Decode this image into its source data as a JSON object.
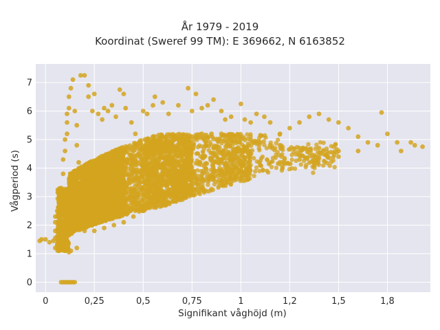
{
  "chart_data": {
    "type": "scatter",
    "title": "År 1979 - 2019",
    "subtitle": "Koordinat (Sweref 99 TM): E 369662, N 6163852",
    "xlabel": "Signifikant våghöjd (m)",
    "ylabel": "Vågperiod (s)",
    "xlim": [
      -0.05,
      1.97
    ],
    "ylim": [
      -0.35,
      7.65
    ],
    "x_ticks": [
      0,
      0.25,
      0.5,
      0.75,
      1,
      1.25,
      1.5,
      1.75
    ],
    "x_tick_labels": [
      "0",
      "0,25",
      "0,5",
      "0,75",
      "1",
      "1,2",
      "1,5",
      "1,8"
    ],
    "y_ticks": [
      0,
      1,
      2,
      3,
      4,
      5,
      6,
      7
    ],
    "y_tick_labels": [
      "0",
      "1",
      "2",
      "3",
      "4",
      "5",
      "6",
      "7"
    ],
    "grid": true,
    "point_color": "#d4a41f",
    "plot_background": "#e5e5ef",
    "series": [
      {
        "values_xy": [
          [
            0.08,
            0
          ],
          [
            0.09,
            0
          ],
          [
            0.1,
            0
          ],
          [
            0.11,
            0
          ],
          [
            0.12,
            0
          ],
          [
            0.13,
            0
          ],
          [
            0.14,
            0
          ],
          [
            0.15,
            0
          ],
          [
            -0.03,
            1.45
          ],
          [
            -0.02,
            1.5
          ],
          [
            0.0,
            1.5
          ],
          [
            0.02,
            1.4
          ],
          [
            0.04,
            1.45
          ],
          [
            0.05,
            1.55
          ],
          [
            0.06,
            1.6
          ],
          [
            0.05,
            1.2
          ],
          [
            0.06,
            1.3
          ],
          [
            0.07,
            1.1
          ],
          [
            0.08,
            1.2
          ],
          [
            0.09,
            1.15
          ],
          [
            0.1,
            1.1
          ],
          [
            0.12,
            1.05
          ],
          [
            0.13,
            1.1
          ],
          [
            0.16,
            1.2
          ],
          [
            0.05,
            1.8
          ],
          [
            0.05,
            2.1
          ],
          [
            0.05,
            2.3
          ],
          [
            0.06,
            2.5
          ],
          [
            0.07,
            2.9
          ],
          [
            0.08,
            3.3
          ],
          [
            0.09,
            3.8
          ],
          [
            0.09,
            4.3
          ],
          [
            0.1,
            4.6
          ],
          [
            0.1,
            5.0
          ],
          [
            0.11,
            5.2
          ],
          [
            0.11,
            5.6
          ],
          [
            0.11,
            5.9
          ],
          [
            0.12,
            6.1
          ],
          [
            0.12,
            6.5
          ],
          [
            0.13,
            6.8
          ],
          [
            0.14,
            7.1
          ],
          [
            0.15,
            6.0
          ],
          [
            0.16,
            5.5
          ],
          [
            0.16,
            4.8
          ],
          [
            0.17,
            4.2
          ],
          [
            0.18,
            7.25
          ],
          [
            0.2,
            7.25
          ],
          [
            0.22,
            6.9
          ],
          [
            0.22,
            6.5
          ],
          [
            0.24,
            6.0
          ],
          [
            0.25,
            6.6
          ],
          [
            0.27,
            5.9
          ],
          [
            0.29,
            5.7
          ],
          [
            0.3,
            6.1
          ],
          [
            0.32,
            6.0
          ],
          [
            0.34,
            6.2
          ],
          [
            0.36,
            5.8
          ],
          [
            0.38,
            6.75
          ],
          [
            0.4,
            6.6
          ],
          [
            0.41,
            6.1
          ],
          [
            0.44,
            5.6
          ],
          [
            0.46,
            5.2
          ],
          [
            0.5,
            6.0
          ],
          [
            0.52,
            5.9
          ],
          [
            0.55,
            6.2
          ],
          [
            0.56,
            6.5
          ],
          [
            0.6,
            6.3
          ],
          [
            0.63,
            5.9
          ],
          [
            0.68,
            6.2
          ],
          [
            0.73,
            6.8
          ],
          [
            0.75,
            6.0
          ],
          [
            0.77,
            6.6
          ],
          [
            0.8,
            6.1
          ],
          [
            0.83,
            6.2
          ],
          [
            0.86,
            6.4
          ],
          [
            0.9,
            6.0
          ],
          [
            0.92,
            5.7
          ],
          [
            0.95,
            5.8
          ],
          [
            1.0,
            6.25
          ],
          [
            1.02,
            5.7
          ],
          [
            1.05,
            5.6
          ],
          [
            1.08,
            5.9
          ],
          [
            1.12,
            5.8
          ],
          [
            1.15,
            5.6
          ],
          [
            1.2,
            5.2
          ],
          [
            1.25,
            5.4
          ],
          [
            1.3,
            5.6
          ],
          [
            1.35,
            5.8
          ],
          [
            1.4,
            5.9
          ],
          [
            1.45,
            5.7
          ],
          [
            1.5,
            5.6
          ],
          [
            1.55,
            5.4
          ],
          [
            1.6,
            5.1
          ],
          [
            1.65,
            4.9
          ],
          [
            1.7,
            4.8
          ],
          [
            1.72,
            5.95
          ],
          [
            1.75,
            5.2
          ],
          [
            1.8,
            4.9
          ],
          [
            1.82,
            4.6
          ],
          [
            1.87,
            4.9
          ],
          [
            1.89,
            4.8
          ],
          [
            1.93,
            4.75
          ],
          [
            0.16,
            3.2
          ],
          [
            0.18,
            3.4
          ],
          [
            0.2,
            3.6
          ],
          [
            0.22,
            3.8
          ],
          [
            0.25,
            3.9
          ],
          [
            0.28,
            4.1
          ],
          [
            0.3,
            4.2
          ],
          [
            0.35,
            4.3
          ],
          [
            0.4,
            4.5
          ],
          [
            0.45,
            4.6
          ],
          [
            0.5,
            4.7
          ],
          [
            0.55,
            4.8
          ],
          [
            0.6,
            4.9
          ],
          [
            0.65,
            5.0
          ],
          [
            0.7,
            5.1
          ],
          [
            0.75,
            5.1
          ],
          [
            0.8,
            5.2
          ],
          [
            0.85,
            5.2
          ],
          [
            0.9,
            5.2
          ],
          [
            0.95,
            5.1
          ],
          [
            1.0,
            5.0
          ],
          [
            1.05,
            5.0
          ],
          [
            1.1,
            4.9
          ],
          [
            1.15,
            4.8
          ],
          [
            1.2,
            4.8
          ],
          [
            1.3,
            4.7
          ],
          [
            1.4,
            4.7
          ],
          [
            1.5,
            4.6
          ],
          [
            1.6,
            4.6
          ],
          [
            0.12,
            2.2
          ],
          [
            0.14,
            2.0
          ],
          [
            0.16,
            1.9
          ],
          [
            0.2,
            1.8
          ],
          [
            0.25,
            1.8
          ],
          [
            0.3,
            1.9
          ],
          [
            0.35,
            2.0
          ],
          [
            0.4,
            2.1
          ],
          [
            0.45,
            2.3
          ],
          [
            0.5,
            2.5
          ],
          [
            0.55,
            2.7
          ],
          [
            0.6,
            2.9
          ],
          [
            0.65,
            3.1
          ],
          [
            0.7,
            3.3
          ],
          [
            0.75,
            3.5
          ],
          [
            0.8,
            3.6
          ],
          [
            0.85,
            3.7
          ],
          [
            0.9,
            3.8
          ],
          [
            0.95,
            3.9
          ],
          [
            1.0,
            3.95
          ],
          [
            1.1,
            4.1
          ],
          [
            1.2,
            4.2
          ],
          [
            1.3,
            4.3
          ],
          [
            1.4,
            4.35
          ],
          [
            1.5,
            4.4
          ]
        ]
      }
    ]
  }
}
